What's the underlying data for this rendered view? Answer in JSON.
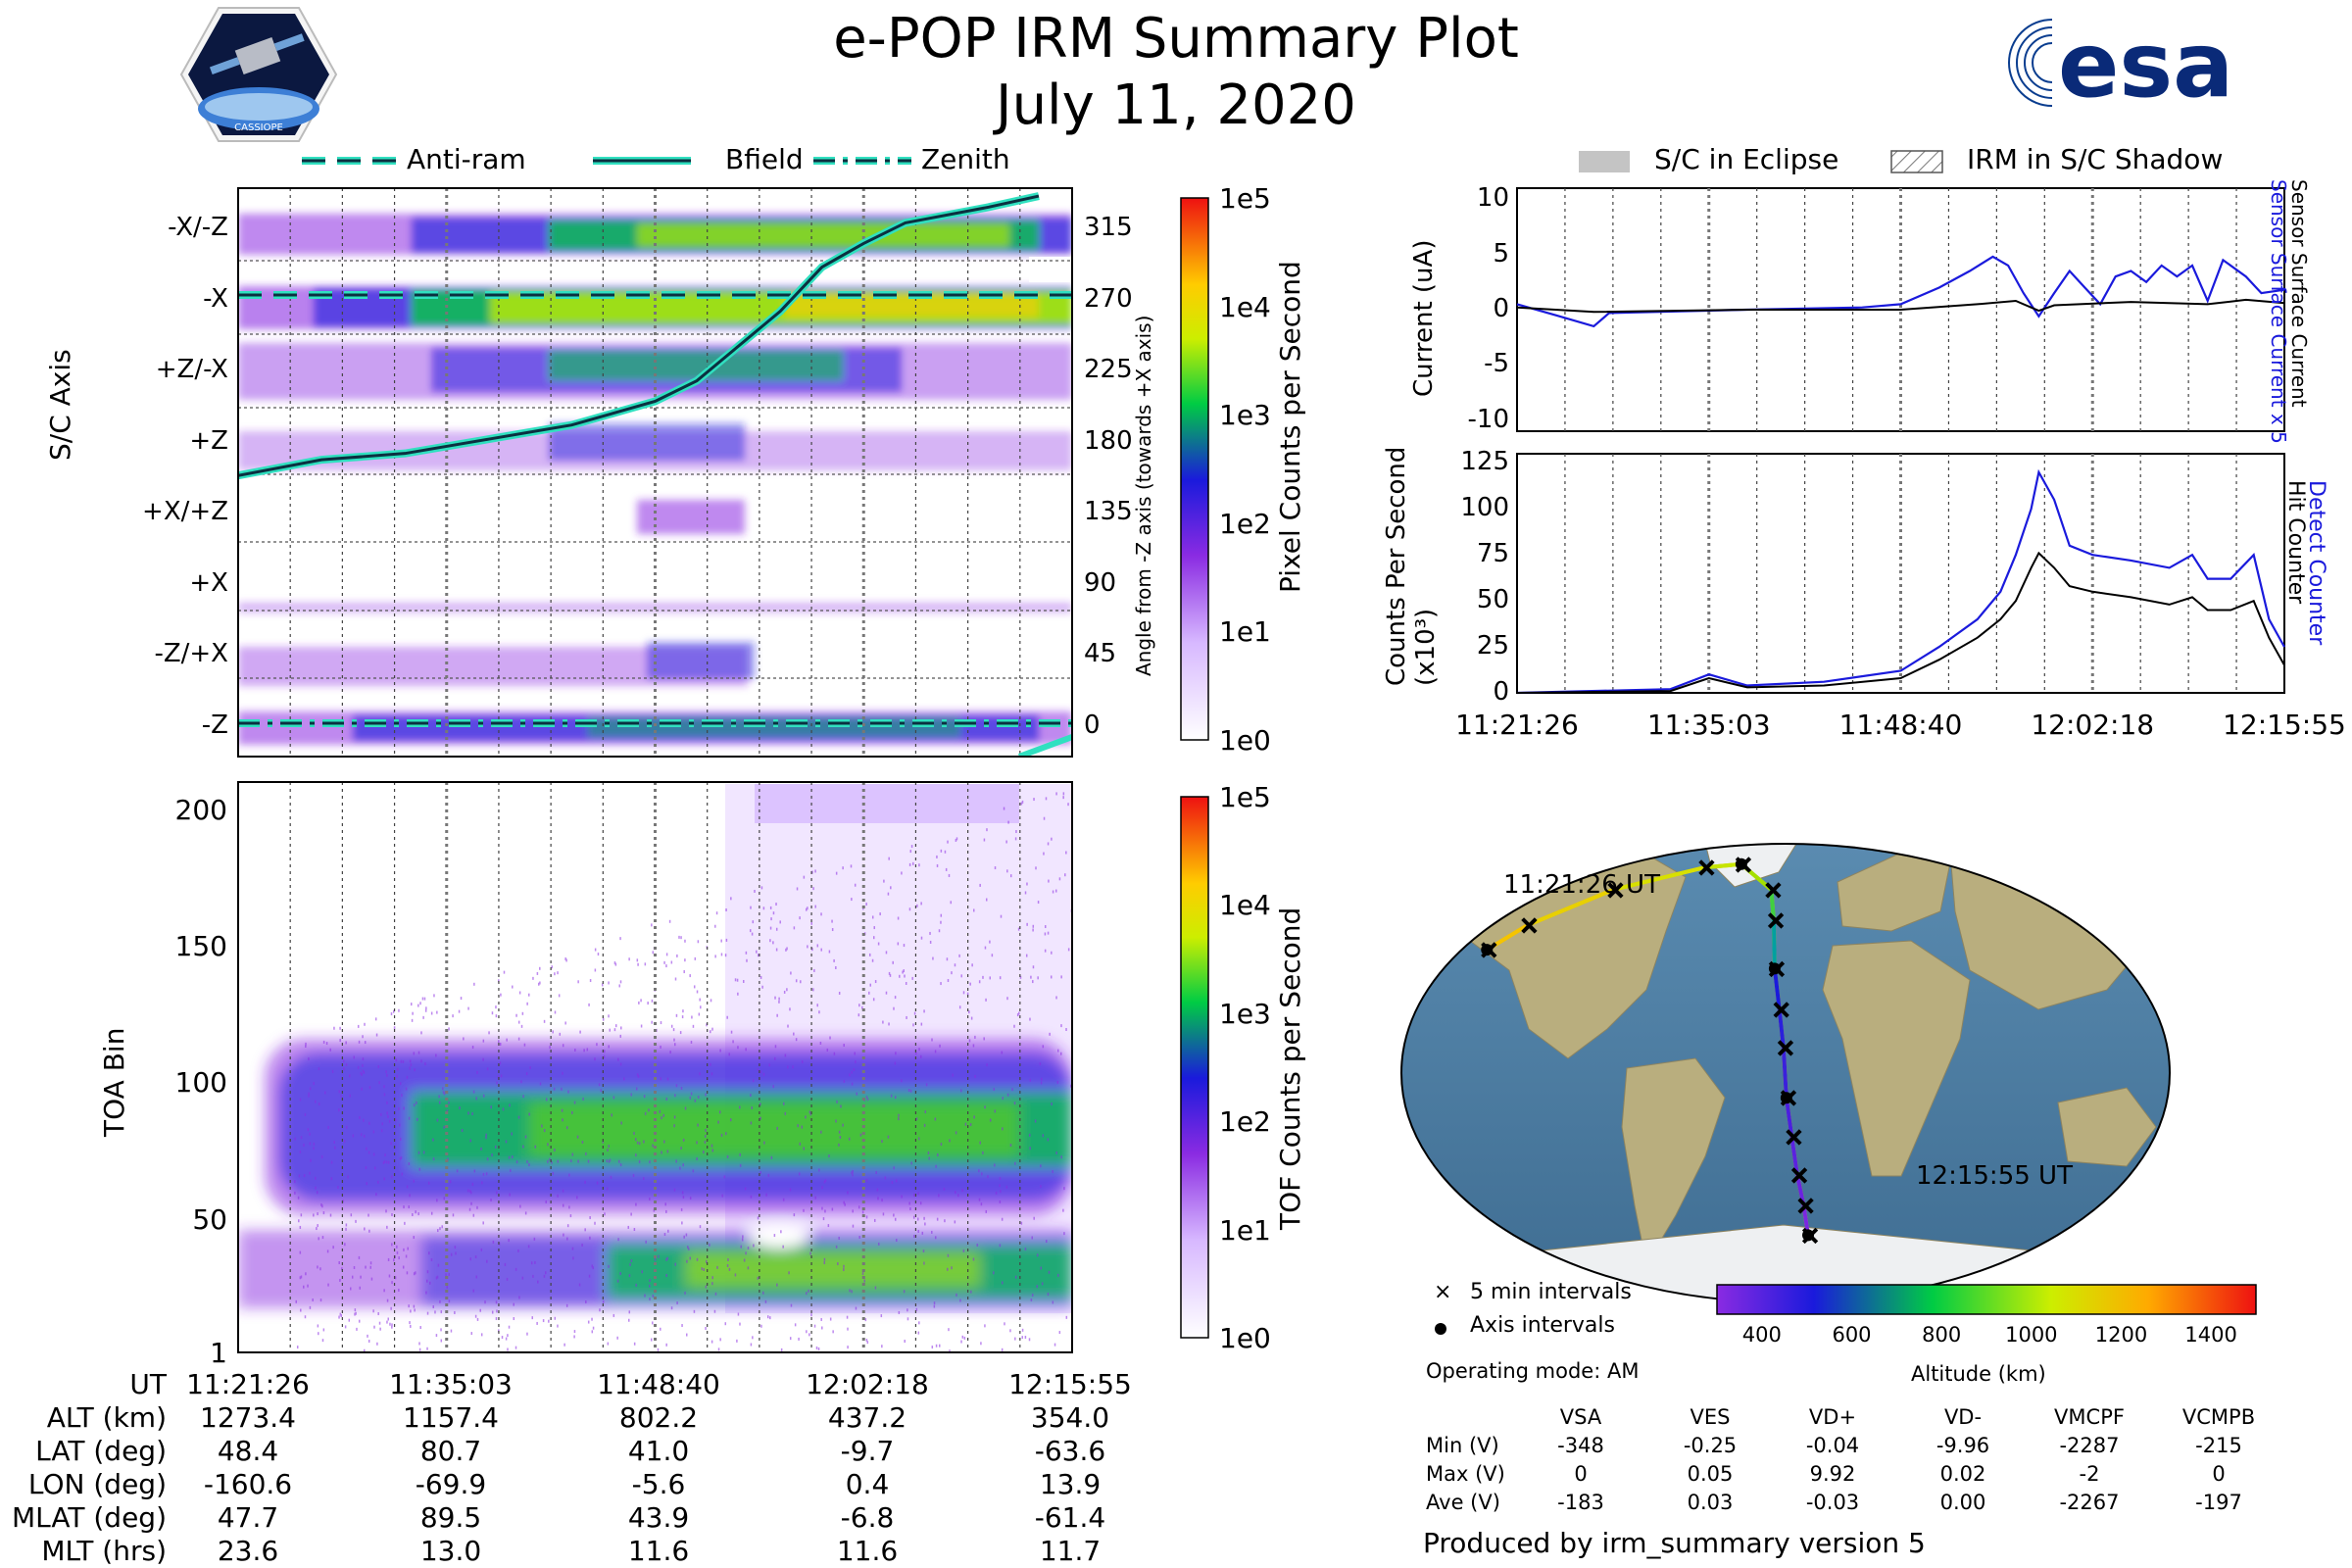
{
  "header": {
    "title": "e-POP IRM Summary Plot",
    "date": "July 11, 2020",
    "logo_left_text": "CASSIOPE",
    "logo_right_text": "esa"
  },
  "legends": {
    "top_left": [
      "Anti-ram",
      "Bfield",
      "Zenith"
    ],
    "top_right": [
      "S/C in Eclipse",
      "IRM in S/C Shadow"
    ]
  },
  "time_ticks": [
    "11:21:26",
    "11:35:03",
    "11:48:40",
    "12:02:18",
    "12:15:55"
  ],
  "colors": {
    "current_blue": "#1a1adc",
    "current_black": "#000000",
    "anti_ram": "#30e0c0",
    "map_ocean": "#4e7fa3",
    "map_land": "#b3a97a"
  },
  "chart_data": [
    {
      "id": "sc_axis_spectrogram",
      "type": "heatmap",
      "ylabel": "S/C Axis",
      "ylabel_right": "Angle from -Z axis (towards +X axis)",
      "yticks_left": [
        "-X/-Z",
        "-X",
        "+Z/-X",
        "+Z",
        "+X/+Z",
        "+X",
        "-Z/+X",
        "-Z"
      ],
      "yticks_right": [
        315,
        270,
        225,
        180,
        135,
        90,
        45,
        0
      ],
      "ylim": [
        -20,
        340
      ],
      "colorbar_label": "Pixel Counts per Second",
      "colorbar_ticks": [
        "1e5",
        "1e4",
        "1e3",
        "1e2",
        "1e1",
        "1e0"
      ],
      "bfield_angle": [
        [
          0,
          158
        ],
        [
          0.1,
          168
        ],
        [
          0.2,
          172
        ],
        [
          0.3,
          181
        ],
        [
          0.4,
          190
        ],
        [
          0.5,
          205
        ],
        [
          0.55,
          218
        ],
        [
          0.6,
          240
        ],
        [
          0.65,
          262
        ],
        [
          0.7,
          290
        ],
        [
          0.75,
          305
        ],
        [
          0.8,
          318
        ],
        [
          0.9,
          328
        ],
        [
          0.96,
          335
        ]
      ],
      "anti_ram_angle": 270,
      "zenith_angle": 0
    },
    {
      "id": "toa_spectrogram",
      "type": "heatmap",
      "ylabel": "TOA Bin",
      "yticks": [
        1,
        50,
        100,
        150,
        200
      ],
      "ylim": [
        1,
        210
      ],
      "colorbar_label": "TOF Counts per Second",
      "colorbar_ticks": [
        "1e5",
        "1e4",
        "1e3",
        "1e2",
        "1e1",
        "1e0"
      ]
    },
    {
      "id": "current_plot",
      "type": "line",
      "ylabel": "Current (uA)",
      "ylim": [
        -11,
        11
      ],
      "yticks": [
        10,
        5,
        0,
        -5,
        -10
      ],
      "right_labels": [
        "Sensor Surface Current x 5",
        "Sensor Surface Current"
      ],
      "series": [
        {
          "name": "Sensor Surface Current x 5",
          "values": [
            [
              0,
              0.5
            ],
            [
              0.05,
              -0.5
            ],
            [
              0.1,
              -1.5
            ],
            [
              0.12,
              -0.3
            ],
            [
              0.3,
              0.0
            ],
            [
              0.45,
              0.2
            ],
            [
              0.5,
              0.5
            ],
            [
              0.55,
              2.0
            ],
            [
              0.59,
              3.5
            ],
            [
              0.62,
              4.8
            ],
            [
              0.64,
              4.0
            ],
            [
              0.66,
              1.5
            ],
            [
              0.68,
              -0.6
            ],
            [
              0.7,
              1.5
            ],
            [
              0.72,
              3.5
            ],
            [
              0.74,
              2.0
            ],
            [
              0.76,
              0.5
            ],
            [
              0.78,
              3.0
            ],
            [
              0.8,
              3.5
            ],
            [
              0.82,
              2.5
            ],
            [
              0.84,
              4.0
            ],
            [
              0.86,
              3.0
            ],
            [
              0.88,
              4.0
            ],
            [
              0.9,
              0.8
            ],
            [
              0.92,
              4.5
            ],
            [
              0.95,
              3.0
            ],
            [
              0.97,
              1.5
            ],
            [
              1,
              1.8
            ]
          ]
        },
        {
          "name": "Sensor Surface Current",
          "values": [
            [
              0,
              0.2
            ],
            [
              0.1,
              -0.2
            ],
            [
              0.3,
              0.0
            ],
            [
              0.5,
              0.0
            ],
            [
              0.6,
              0.5
            ],
            [
              0.65,
              0.8
            ],
            [
              0.68,
              -0.1
            ],
            [
              0.7,
              0.4
            ],
            [
              0.8,
              0.7
            ],
            [
              0.9,
              0.5
            ],
            [
              0.95,
              0.9
            ],
            [
              1,
              0.6
            ]
          ]
        }
      ]
    },
    {
      "id": "counts_plot",
      "type": "line",
      "ylabel": "Counts Per Second (x10³)",
      "ylim": [
        0,
        130
      ],
      "yticks": [
        0,
        25,
        50,
        75,
        100,
        125
      ],
      "right_labels": [
        "Detect Counter",
        "Hit Counter"
      ],
      "series": [
        {
          "name": "Detect Counter",
          "values": [
            [
              0,
              0
            ],
            [
              0.2,
              2
            ],
            [
              0.25,
              10
            ],
            [
              0.3,
              4
            ],
            [
              0.4,
              6
            ],
            [
              0.5,
              12
            ],
            [
              0.55,
              25
            ],
            [
              0.6,
              40
            ],
            [
              0.63,
              55
            ],
            [
              0.65,
              75
            ],
            [
              0.67,
              100
            ],
            [
              0.68,
              120
            ],
            [
              0.7,
              105
            ],
            [
              0.72,
              80
            ],
            [
              0.75,
              75
            ],
            [
              0.8,
              72
            ],
            [
              0.85,
              68
            ],
            [
              0.88,
              75
            ],
            [
              0.9,
              62
            ],
            [
              0.93,
              62
            ],
            [
              0.96,
              75
            ],
            [
              0.98,
              40
            ],
            [
              1,
              25
            ]
          ]
        },
        {
          "name": "Hit Counter",
          "values": [
            [
              0,
              0
            ],
            [
              0.2,
              1
            ],
            [
              0.25,
              8
            ],
            [
              0.3,
              3
            ],
            [
              0.4,
              4
            ],
            [
              0.5,
              8
            ],
            [
              0.55,
              18
            ],
            [
              0.6,
              30
            ],
            [
              0.63,
              40
            ],
            [
              0.65,
              50
            ],
            [
              0.67,
              68
            ],
            [
              0.68,
              76
            ],
            [
              0.7,
              68
            ],
            [
              0.72,
              58
            ],
            [
              0.75,
              55
            ],
            [
              0.8,
              52
            ],
            [
              0.85,
              48
            ],
            [
              0.88,
              52
            ],
            [
              0.9,
              45
            ],
            [
              0.93,
              45
            ],
            [
              0.96,
              50
            ],
            [
              0.98,
              30
            ],
            [
              1,
              15
            ]
          ]
        }
      ]
    },
    {
      "id": "ground_track_map",
      "type": "scatter",
      "start_label": "11:21:26 UT",
      "end_label": "12:15:55 UT",
      "legend": [
        "5 min intervals",
        "Axis intervals"
      ],
      "operating_mode": "Operating mode: AM",
      "colorbar_label": "Altitude (km)",
      "colorbar_ticks": [
        400,
        600,
        800,
        1000,
        1200,
        1400
      ],
      "track_lonlat": [
        [
          -160.6,
          48.4
        ],
        [
          -150,
          58
        ],
        [
          -120,
          72
        ],
        [
          -69.9,
          80.7
        ],
        [
          -40,
          82
        ],
        [
          -10,
          72
        ],
        [
          -7,
          60
        ],
        [
          -5.6,
          41.0
        ],
        [
          -3,
          25
        ],
        [
          -1,
          10
        ],
        [
          0.4,
          -9.7
        ],
        [
          3,
          -25
        ],
        [
          6,
          -40
        ],
        [
          10,
          -52
        ],
        [
          13.9,
          -63.6
        ]
      ]
    }
  ],
  "ephemeris_table": {
    "rows": [
      {
        "label": "UT",
        "values": [
          "11:21:26",
          "11:35:03",
          "11:48:40",
          "12:02:18",
          "12:15:55"
        ]
      },
      {
        "label": "ALT (km)",
        "values": [
          "1273.4",
          "1157.4",
          "802.2",
          "437.2",
          "354.0"
        ]
      },
      {
        "label": "LAT (deg)",
        "values": [
          "48.4",
          "80.7",
          "41.0",
          "-9.7",
          "-63.6"
        ]
      },
      {
        "label": "LON (deg)",
        "values": [
          "-160.6",
          "-69.9",
          "-5.6",
          "0.4",
          "13.9"
        ]
      },
      {
        "label": "MLAT (deg)",
        "values": [
          "47.7",
          "89.5",
          "43.9",
          "-6.8",
          "-61.4"
        ]
      },
      {
        "label": "MLT (hrs)",
        "values": [
          "23.6",
          "13.0",
          "11.6",
          "11.6",
          "11.7"
        ]
      }
    ]
  },
  "voltage_table": {
    "headers": [
      "VSA",
      "VES",
      "VD+",
      "VD-",
      "VMCPF",
      "VCMPB"
    ],
    "rows": [
      {
        "label": "Min (V)",
        "values": [
          "-348",
          "-0.25",
          "-0.04",
          "-9.96",
          "-2287",
          "-215"
        ]
      },
      {
        "label": "Max (V)",
        "values": [
          "0",
          "0.05",
          "9.92",
          "0.02",
          "-2",
          "0"
        ]
      },
      {
        "label": "Ave (V)",
        "values": [
          "-183",
          "0.03",
          "-0.03",
          "0.00",
          "-2267",
          "-197"
        ]
      }
    ]
  },
  "footer": "Produced by irm_summary version 5"
}
